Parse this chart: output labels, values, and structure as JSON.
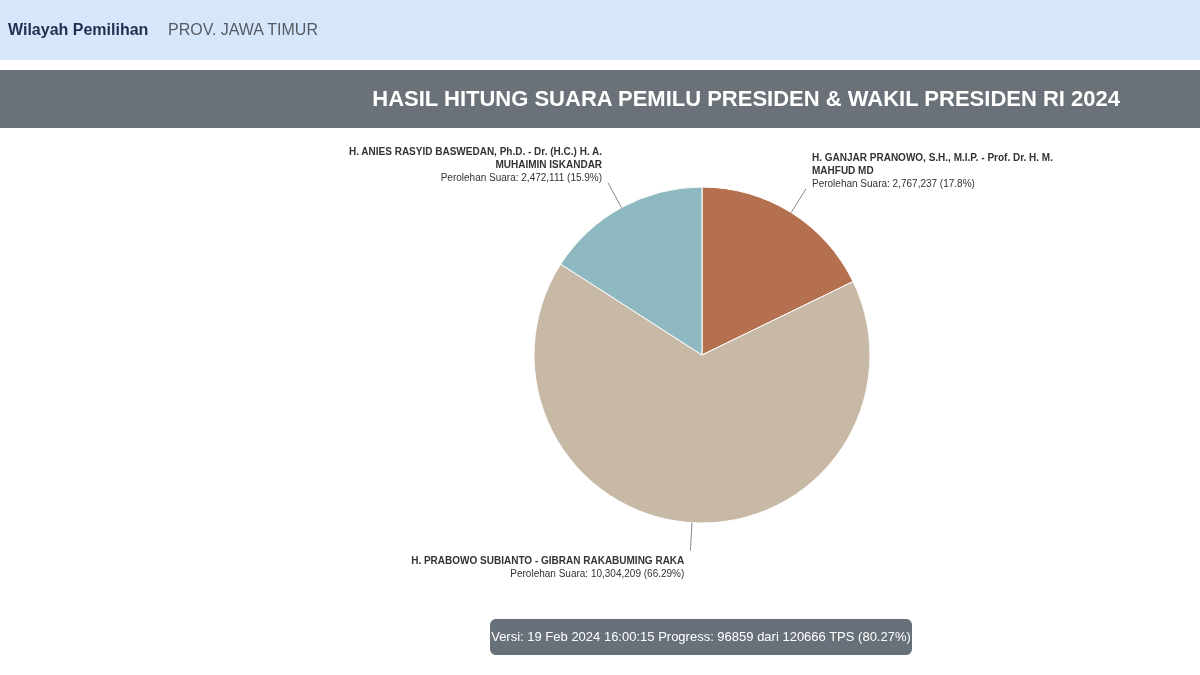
{
  "chart_data": {
    "type": "pie",
    "title": "HASIL HITUNG SUARA PEMILU PRESIDEN & WAKIL PRESIDEN RI 2024",
    "subtitle": "Wilayah Pemilihan  PROV. JAWA TIMUR",
    "categories": [
      "H. GANJAR PRANOWO, S.H., M.I.P. - Prof. Dr. H. M. MAHFUD MD",
      "H. PRABOWO SUBIANTO - GIBRAN RAKABUMING RAKA",
      "H. ANIES RASYID BASWEDAN, Ph.D. - Dr. (H.C.) H. A. MUHAIMIN ISKANDAR"
    ],
    "values": [
      2767237,
      10304209,
      2472111
    ],
    "value_labels": [
      "Perolehan Suara: 2,767,237 (17.8%)",
      "Perolehan Suara: 10,304,209 (66.29%)",
      "Perolehan Suara: 2,472,111 (15.9%)"
    ],
    "colors": [
      "#b5714f",
      "#c8b8a6",
      "#8fb9c0"
    ],
    "annotations": [
      "Versi: 19 Feb 2024 16:00:15 Progress: 96859 dari 120666 TPS (80.27%)"
    ]
  }
}
